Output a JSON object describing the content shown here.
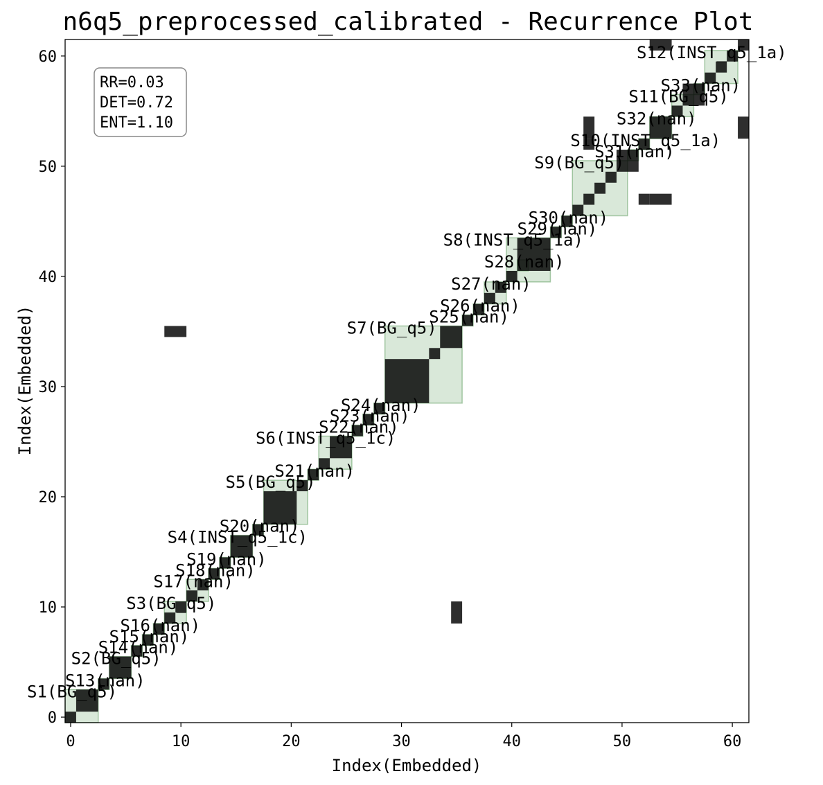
{
  "chart_data": {
    "type": "heatmap",
    "title": "n6q5_preprocessed_calibrated - Recurrence Plot",
    "xlabel": "Index(Embedded)",
    "ylabel": "Index(Embedded)",
    "xlim": [
      -0.5,
      61.5
    ],
    "ylim": [
      -0.5,
      61.5
    ],
    "xticks": [
      0,
      10,
      20,
      30,
      40,
      50,
      60
    ],
    "yticks": [
      0,
      10,
      20,
      30,
      40,
      50,
      60
    ],
    "metrics": [
      "RR=0.03",
      "DET=0.72",
      "ENT=1.10"
    ],
    "segments": [
      {
        "label": "S1(BG_q5)",
        "start": 0,
        "end": 3
      },
      {
        "label": "S13(nan)",
        "start": 3,
        "end": 4
      },
      {
        "label": "S2(BG_q5)",
        "start": 4,
        "end": 6
      },
      {
        "label": "S14(nan)",
        "start": 6,
        "end": 7
      },
      {
        "label": "S15(nan)",
        "start": 7,
        "end": 8
      },
      {
        "label": "S16(nan)",
        "start": 8,
        "end": 9
      },
      {
        "label": "S3(BG_q5)",
        "start": 9,
        "end": 11
      },
      {
        "label": "S17(nan)",
        "start": 11,
        "end": 13
      },
      {
        "label": "S18(nan)",
        "start": 13,
        "end": 14
      },
      {
        "label": "S19(nan)",
        "start": 14,
        "end": 15
      },
      {
        "label": "S4(INST_q5_1c)",
        "start": 15,
        "end": 17
      },
      {
        "label": "S20(nan)",
        "start": 17,
        "end": 18
      },
      {
        "label": "S5(BG_q5)",
        "start": 18,
        "end": 22
      },
      {
        "label": "S21(nan)",
        "start": 22,
        "end": 23
      },
      {
        "label": "S6(INST_q5_1c)",
        "start": 23,
        "end": 26
      },
      {
        "label": "S22(nan)",
        "start": 26,
        "end": 27
      },
      {
        "label": "S23(nan)",
        "start": 27,
        "end": 28
      },
      {
        "label": "S24(nan)",
        "start": 28,
        "end": 29
      },
      {
        "label": "S7(BG_q5)",
        "start": 29,
        "end": 36
      },
      {
        "label": "S25(nan)",
        "start": 36,
        "end": 37
      },
      {
        "label": "S26(nan)",
        "start": 37,
        "end": 38
      },
      {
        "label": "S27(nan)",
        "start": 38,
        "end": 40
      },
      {
        "label": "S8(INST_q5_1a)",
        "start": 40,
        "end": 44
      },
      {
        "label": "S28(nan)",
        "start": 41,
        "end": 42
      },
      {
        "label": "S29(nan)",
        "start": 44,
        "end": 45
      },
      {
        "label": "S30(nan)",
        "start": 45,
        "end": 46
      },
      {
        "label": "S9(BG_q5)",
        "start": 46,
        "end": 51
      },
      {
        "label": "S31(nan)",
        "start": 51,
        "end": 52
      },
      {
        "label": "S10(INST_q5_1a)",
        "start": 52,
        "end": 53
      },
      {
        "label": "S32(nan)",
        "start": 53,
        "end": 55
      },
      {
        "label": "S11(BG_q5)",
        "start": 55,
        "end": 57
      },
      {
        "label": "S33(nan)",
        "start": 57,
        "end": 58
      },
      {
        "label": "S12(INST_q5_1a)",
        "start": 58,
        "end": 61
      }
    ],
    "recurrence_blocks": [
      [
        -0.5,
        -0.5,
        1,
        1
      ],
      [
        0.5,
        0.5,
        2,
        2
      ],
      [
        2.5,
        2.5,
        1,
        1
      ],
      [
        3.5,
        3.5,
        2,
        2
      ],
      [
        5.5,
        5.5,
        1,
        1
      ],
      [
        6.5,
        6.5,
        1,
        1
      ],
      [
        7.5,
        7.5,
        1,
        1
      ],
      [
        8.5,
        8.5,
        1,
        1
      ],
      [
        9.5,
        9.5,
        1,
        1
      ],
      [
        10.5,
        10.5,
        1,
        1
      ],
      [
        11.5,
        11.5,
        1,
        1
      ],
      [
        12.5,
        12.5,
        1,
        1
      ],
      [
        13.5,
        13.5,
        1,
        1
      ],
      [
        14.5,
        14.5,
        2,
        2
      ],
      [
        16.5,
        16.5,
        1,
        1
      ],
      [
        17.5,
        17.5,
        3,
        3
      ],
      [
        20.5,
        20.5,
        1,
        1
      ],
      [
        21.5,
        21.5,
        1,
        1
      ],
      [
        22.5,
        22.5,
        1,
        1
      ],
      [
        23.5,
        23.5,
        2,
        2
      ],
      [
        25.5,
        25.5,
        1,
        1
      ],
      [
        26.5,
        26.5,
        1,
        1
      ],
      [
        27.5,
        27.5,
        1,
        1
      ],
      [
        28.5,
        28.5,
        4,
        4
      ],
      [
        32.5,
        32.5,
        1,
        1
      ],
      [
        33.5,
        33.5,
        2,
        2
      ],
      [
        35.5,
        35.5,
        1,
        1
      ],
      [
        36.5,
        36.5,
        1,
        1
      ],
      [
        37.5,
        37.5,
        1,
        1
      ],
      [
        38.5,
        38.5,
        1,
        1
      ],
      [
        39.5,
        39.5,
        1,
        1
      ],
      [
        40.5,
        40.5,
        3,
        3
      ],
      [
        43.5,
        43.5,
        1,
        1
      ],
      [
        44.5,
        44.5,
        1,
        1
      ],
      [
        45.5,
        45.5,
        1,
        1
      ],
      [
        46.5,
        46.5,
        1,
        1
      ],
      [
        47.5,
        47.5,
        1,
        1
      ],
      [
        48.5,
        48.5,
        1,
        1
      ],
      [
        49.5,
        49.5,
        2,
        2
      ],
      [
        51.5,
        51.5,
        1,
        1
      ],
      [
        52.5,
        52.5,
        2,
        2
      ],
      [
        54.5,
        54.5,
        1,
        1
      ],
      [
        55.5,
        55.5,
        2,
        2
      ],
      [
        57.5,
        57.5,
        1,
        1
      ],
      [
        58.5,
        58.5,
        1,
        1
      ],
      [
        59.5,
        59.5,
        1,
        1
      ],
      [
        60.5,
        60.5,
        1,
        1
      ],
      [
        8.5,
        34.5,
        2,
        1
      ],
      [
        34.5,
        8.5,
        1,
        2
      ],
      [
        52.5,
        60.5,
        2,
        1
      ],
      [
        60.5,
        52.5,
        1,
        2
      ],
      [
        46.5,
        51.5,
        1,
        1
      ],
      [
        51.5,
        46.5,
        1,
        1
      ],
      [
        46.5,
        52.5,
        1,
        2
      ],
      [
        52.5,
        46.5,
        2,
        1
      ]
    ]
  }
}
